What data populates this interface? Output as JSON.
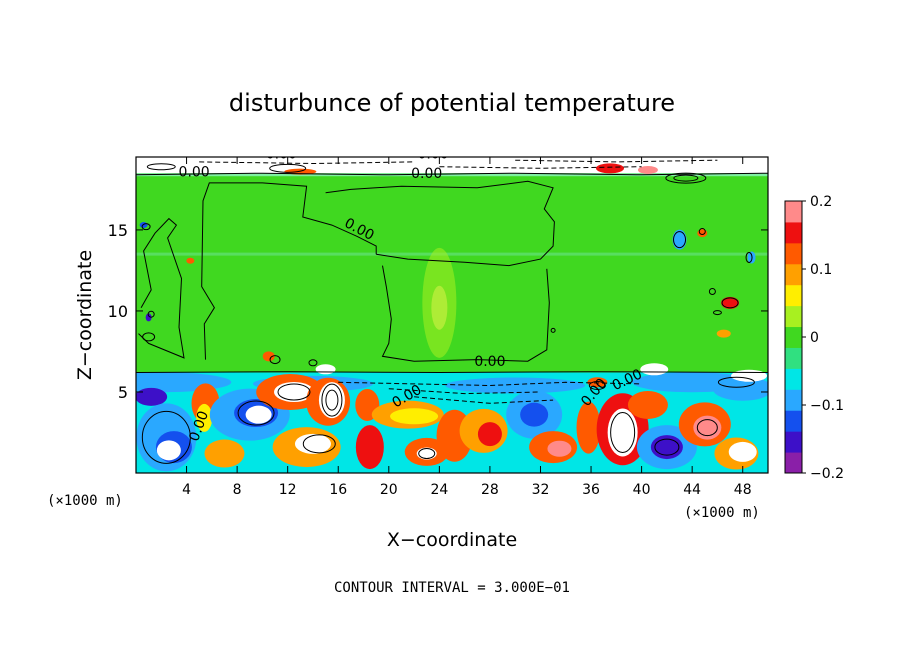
{
  "chart_data": {
    "type": "heatmap",
    "title": "disturbunce of potential temperature",
    "xlabel": "X−coordinate",
    "ylabel": "Z−coordinate",
    "x_unit": "(×1000 m)",
    "z_unit": "(×1000 m)",
    "xlim": [
      0,
      50
    ],
    "ylim": [
      0,
      19.5
    ],
    "x_ticks": [
      4,
      8,
      12,
      16,
      20,
      24,
      28,
      32,
      36,
      40,
      44,
      48
    ],
    "y_ticks": [
      5,
      10,
      15
    ],
    "colorbar": {
      "range": [
        -0.2,
        0.2
      ],
      "ticks": [
        {
          "value": 0.2,
          "label": "0.2"
        },
        {
          "value": 0.1,
          "label": "0.1"
        },
        {
          "value": 0,
          "label": "0"
        },
        {
          "value": -0.1,
          "label": "−0.1"
        },
        {
          "value": -0.2,
          "label": "−0.2"
        }
      ],
      "colors": [
        "#8a1fa8",
        "#3d10c8",
        "#1450ee",
        "#2aa8ff",
        "#00e6e6",
        "#30e080",
        "#40d820",
        "#a8f020",
        "#ffee00",
        "#ffa000",
        "#ff5a00",
        "#ee1010",
        "#ff8a8a"
      ]
    },
    "contour_labels": [
      "0.00",
      "0.00",
      "0.00",
      "0.00",
      "0.00",
      "0.00",
      "0.00",
      "0.00",
      "0.00",
      "0.00"
    ],
    "contour_interval_text": "CONTOUR INTERVAL = 3.000E−01"
  }
}
